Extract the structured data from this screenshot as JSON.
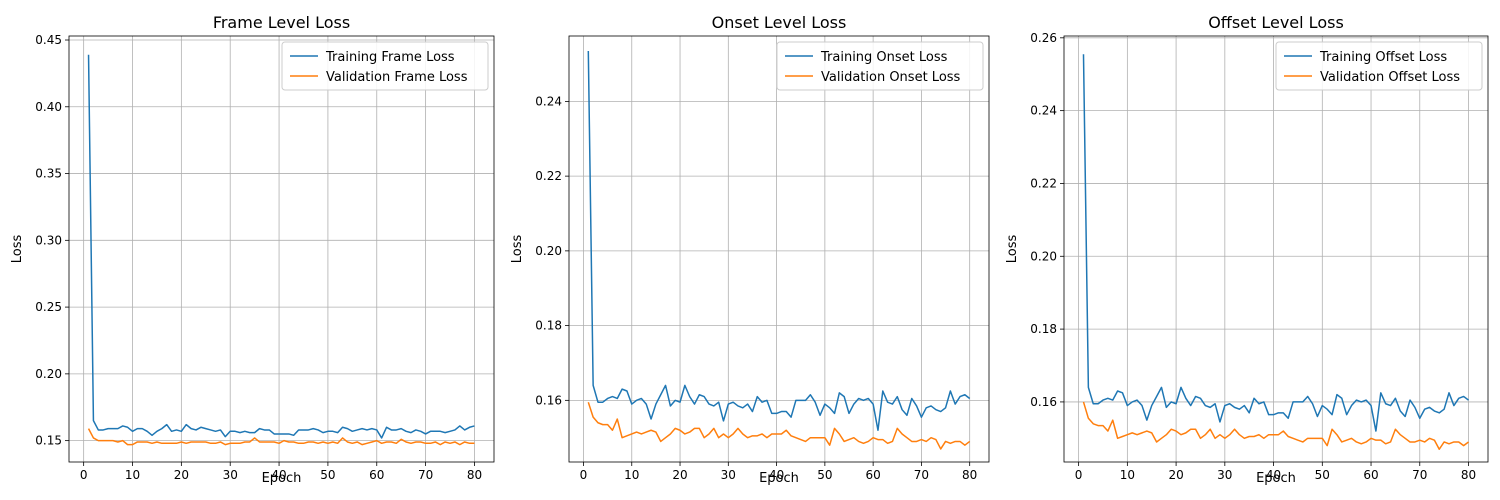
{
  "colors": {
    "training": "#1f77b4",
    "validation": "#ff7f0e",
    "grid": "#b0b0b0",
    "axis": "#000000"
  },
  "chart_data": [
    {
      "type": "line",
      "title": "Frame Level Loss",
      "xlabel": "Epoch",
      "ylabel": "Loss",
      "xlim": [
        -3,
        84
      ],
      "ylim": [
        0.134,
        0.453
      ],
      "xticks": [
        0,
        10,
        20,
        30,
        40,
        50,
        60,
        70,
        80
      ],
      "yticks": [
        0.15,
        0.2,
        0.25,
        0.3,
        0.35,
        0.4,
        0.45
      ],
      "ytick_labels": [
        "0.15",
        "0.20",
        "0.25",
        "0.30",
        "0.35",
        "0.40",
        "0.45"
      ],
      "grid": true,
      "legend": "upper right",
      "x": [
        1,
        2,
        3,
        4,
        5,
        6,
        7,
        8,
        9,
        10,
        11,
        12,
        13,
        14,
        15,
        16,
        17,
        18,
        19,
        20,
        21,
        22,
        23,
        24,
        25,
        26,
        27,
        28,
        29,
        30,
        31,
        32,
        33,
        34,
        35,
        36,
        37,
        38,
        39,
        40,
        41,
        42,
        43,
        44,
        45,
        46,
        47,
        48,
        49,
        50,
        51,
        52,
        53,
        54,
        55,
        56,
        57,
        58,
        59,
        60,
        61,
        62,
        63,
        64,
        65,
        66,
        67,
        68,
        69,
        70,
        71,
        72,
        73,
        74,
        75,
        76,
        77,
        78,
        79,
        80
      ],
      "series": [
        {
          "name": "Training Frame Loss",
          "values": [
            0.439,
            0.165,
            0.158,
            0.158,
            0.159,
            0.159,
            0.159,
            0.161,
            0.16,
            0.157,
            0.159,
            0.159,
            0.157,
            0.154,
            0.157,
            0.159,
            0.162,
            0.157,
            0.158,
            0.157,
            0.162,
            0.159,
            0.158,
            0.16,
            0.159,
            0.158,
            0.157,
            0.158,
            0.153,
            0.157,
            0.157,
            0.156,
            0.157,
            0.156,
            0.156,
            0.159,
            0.158,
            0.158,
            0.155,
            0.155,
            0.155,
            0.155,
            0.154,
            0.158,
            0.158,
            0.158,
            0.159,
            0.158,
            0.156,
            0.157,
            0.157,
            0.156,
            0.16,
            0.159,
            0.157,
            0.158,
            0.159,
            0.158,
            0.159,
            0.158,
            0.152,
            0.16,
            0.158,
            0.158,
            0.159,
            0.157,
            0.156,
            0.158,
            0.157,
            0.155,
            0.157,
            0.157,
            0.157,
            0.156,
            0.157,
            0.158,
            0.161,
            0.158,
            0.16,
            0.161
          ]
        },
        {
          "name": "Validation Frame Loss",
          "values": [
            0.159,
            0.152,
            0.15,
            0.15,
            0.15,
            0.15,
            0.149,
            0.15,
            0.147,
            0.147,
            0.149,
            0.149,
            0.149,
            0.148,
            0.149,
            0.148,
            0.148,
            0.148,
            0.148,
            0.149,
            0.148,
            0.149,
            0.149,
            0.149,
            0.149,
            0.148,
            0.148,
            0.149,
            0.147,
            0.148,
            0.148,
            0.148,
            0.149,
            0.149,
            0.152,
            0.149,
            0.149,
            0.149,
            0.149,
            0.148,
            0.15,
            0.149,
            0.149,
            0.148,
            0.148,
            0.149,
            0.149,
            0.148,
            0.149,
            0.148,
            0.149,
            0.148,
            0.152,
            0.149,
            0.148,
            0.149,
            0.147,
            0.148,
            0.149,
            0.15,
            0.148,
            0.149,
            0.149,
            0.148,
            0.151,
            0.149,
            0.148,
            0.149,
            0.149,
            0.148,
            0.148,
            0.149,
            0.147,
            0.149,
            0.148,
            0.149,
            0.147,
            0.149,
            0.148,
            0.148
          ]
        }
      ]
    },
    {
      "type": "line",
      "title": "Onset Level Loss",
      "xlabel": "Epoch",
      "ylabel": "Loss",
      "xlim": [
        -3,
        84
      ],
      "ylim": [
        0.1435,
        0.2575
      ],
      "xticks": [
        0,
        10,
        20,
        30,
        40,
        50,
        60,
        70,
        80
      ],
      "yticks": [
        0.16,
        0.18,
        0.2,
        0.22,
        0.24
      ],
      "ytick_labels": [
        "0.16",
        "0.18",
        "0.20",
        "0.22",
        "0.24"
      ],
      "grid": true,
      "legend": "upper right",
      "x": [
        1,
        2,
        3,
        4,
        5,
        6,
        7,
        8,
        9,
        10,
        11,
        12,
        13,
        14,
        15,
        16,
        17,
        18,
        19,
        20,
        21,
        22,
        23,
        24,
        25,
        26,
        27,
        28,
        29,
        30,
        31,
        32,
        33,
        34,
        35,
        36,
        37,
        38,
        39,
        40,
        41,
        42,
        43,
        44,
        45,
        46,
        47,
        48,
        49,
        50,
        51,
        52,
        53,
        54,
        55,
        56,
        57,
        58,
        59,
        60,
        61,
        62,
        63,
        64,
        65,
        66,
        67,
        68,
        69,
        70,
        71,
        72,
        73,
        74,
        75,
        76,
        77,
        78,
        79,
        80
      ],
      "series": [
        {
          "name": "Training Onset Loss",
          "values": [
            0.2535,
            0.164,
            0.1595,
            0.1595,
            0.1605,
            0.161,
            0.1605,
            0.163,
            0.1625,
            0.159,
            0.16,
            0.1605,
            0.159,
            0.155,
            0.159,
            0.1615,
            0.164,
            0.1585,
            0.16,
            0.1595,
            0.164,
            0.161,
            0.159,
            0.1615,
            0.161,
            0.159,
            0.1585,
            0.1595,
            0.1545,
            0.159,
            0.1595,
            0.1585,
            0.158,
            0.159,
            0.157,
            0.161,
            0.1595,
            0.16,
            0.1565,
            0.1565,
            0.157,
            0.157,
            0.1555,
            0.16,
            0.16,
            0.16,
            0.1615,
            0.1595,
            0.156,
            0.159,
            0.158,
            0.1565,
            0.162,
            0.161,
            0.1565,
            0.159,
            0.1605,
            0.16,
            0.1605,
            0.159,
            0.152,
            0.1625,
            0.1595,
            0.159,
            0.161,
            0.1575,
            0.156,
            0.1605,
            0.1585,
            0.1555,
            0.158,
            0.1585,
            0.1575,
            0.157,
            0.158,
            0.1625,
            0.159,
            0.161,
            0.1615,
            0.1605
          ]
        },
        {
          "name": "Validation Onset Loss",
          "values": [
            0.1595,
            0.1555,
            0.154,
            0.1535,
            0.1535,
            0.152,
            0.155,
            0.15,
            0.1505,
            0.151,
            0.1515,
            0.151,
            0.1515,
            0.152,
            0.1515,
            0.149,
            0.15,
            0.151,
            0.1525,
            0.152,
            0.151,
            0.1515,
            0.1525,
            0.1525,
            0.15,
            0.151,
            0.1525,
            0.15,
            0.151,
            0.15,
            0.151,
            0.1525,
            0.151,
            0.15,
            0.1505,
            0.1505,
            0.151,
            0.15,
            0.151,
            0.151,
            0.151,
            0.152,
            0.1505,
            0.15,
            0.1495,
            0.149,
            0.15,
            0.15,
            0.15,
            0.15,
            0.148,
            0.1525,
            0.151,
            0.149,
            0.1495,
            0.15,
            0.149,
            0.1485,
            0.149,
            0.15,
            0.1495,
            0.1495,
            0.1485,
            0.149,
            0.1525,
            0.151,
            0.15,
            0.149,
            0.149,
            0.1495,
            0.149,
            0.15,
            0.1495,
            0.147,
            0.149,
            0.1485,
            0.149,
            0.149,
            0.148,
            0.149
          ]
        }
      ]
    },
    {
      "type": "line",
      "title": "Offset Level Loss",
      "xlabel": "Epoch",
      "ylabel": "Loss",
      "xlim": [
        -3,
        84
      ],
      "ylim": [
        0.1435,
        0.2605
      ],
      "xticks": [
        0,
        10,
        20,
        30,
        40,
        50,
        60,
        70,
        80
      ],
      "yticks": [
        0.16,
        0.18,
        0.2,
        0.22,
        0.24,
        0.26
      ],
      "ytick_labels": [
        "0.16",
        "0.18",
        "0.20",
        "0.22",
        "0.24",
        "0.26"
      ],
      "grid": true,
      "legend": "upper right",
      "x": [
        1,
        2,
        3,
        4,
        5,
        6,
        7,
        8,
        9,
        10,
        11,
        12,
        13,
        14,
        15,
        16,
        17,
        18,
        19,
        20,
        21,
        22,
        23,
        24,
        25,
        26,
        27,
        28,
        29,
        30,
        31,
        32,
        33,
        34,
        35,
        36,
        37,
        38,
        39,
        40,
        41,
        42,
        43,
        44,
        45,
        46,
        47,
        48,
        49,
        50,
        51,
        52,
        53,
        54,
        55,
        56,
        57,
        58,
        59,
        60,
        61,
        62,
        63,
        64,
        65,
        66,
        67,
        68,
        69,
        70,
        71,
        72,
        73,
        74,
        75,
        76,
        77,
        78,
        79,
        80
      ],
      "series": [
        {
          "name": "Training Offset Loss",
          "values": [
            0.2555,
            0.164,
            0.1595,
            0.1595,
            0.1605,
            0.161,
            0.1605,
            0.163,
            0.1625,
            0.159,
            0.16,
            0.1605,
            0.159,
            0.155,
            0.159,
            0.1615,
            0.164,
            0.1585,
            0.16,
            0.1595,
            0.164,
            0.161,
            0.159,
            0.1615,
            0.161,
            0.159,
            0.1585,
            0.1595,
            0.1545,
            0.159,
            0.1595,
            0.1585,
            0.158,
            0.159,
            0.157,
            0.161,
            0.1595,
            0.16,
            0.1565,
            0.1565,
            0.157,
            0.157,
            0.1555,
            0.16,
            0.16,
            0.16,
            0.1615,
            0.1595,
            0.156,
            0.159,
            0.158,
            0.1565,
            0.162,
            0.161,
            0.1565,
            0.159,
            0.1605,
            0.16,
            0.1605,
            0.159,
            0.152,
            0.1625,
            0.1595,
            0.159,
            0.161,
            0.1575,
            0.156,
            0.1605,
            0.1585,
            0.1555,
            0.158,
            0.1585,
            0.1575,
            0.157,
            0.158,
            0.1625,
            0.159,
            0.161,
            0.1615,
            0.1605
          ]
        },
        {
          "name": "Validation Offset Loss",
          "values": [
            0.16,
            0.1555,
            0.154,
            0.1535,
            0.1535,
            0.152,
            0.155,
            0.15,
            0.1505,
            0.151,
            0.1515,
            0.151,
            0.1515,
            0.152,
            0.1515,
            0.149,
            0.15,
            0.151,
            0.1525,
            0.152,
            0.151,
            0.1515,
            0.1525,
            0.1525,
            0.15,
            0.151,
            0.1525,
            0.15,
            0.151,
            0.15,
            0.151,
            0.1525,
            0.151,
            0.15,
            0.1505,
            0.1505,
            0.151,
            0.15,
            0.151,
            0.151,
            0.151,
            0.152,
            0.1505,
            0.15,
            0.1495,
            0.149,
            0.15,
            0.15,
            0.15,
            0.15,
            0.148,
            0.1525,
            0.151,
            0.149,
            0.1495,
            0.15,
            0.149,
            0.1485,
            0.149,
            0.15,
            0.1495,
            0.1495,
            0.1485,
            0.149,
            0.1525,
            0.151,
            0.15,
            0.149,
            0.149,
            0.1495,
            0.149,
            0.15,
            0.1495,
            0.147,
            0.149,
            0.1485,
            0.149,
            0.149,
            0.148,
            0.149
          ]
        }
      ]
    }
  ]
}
